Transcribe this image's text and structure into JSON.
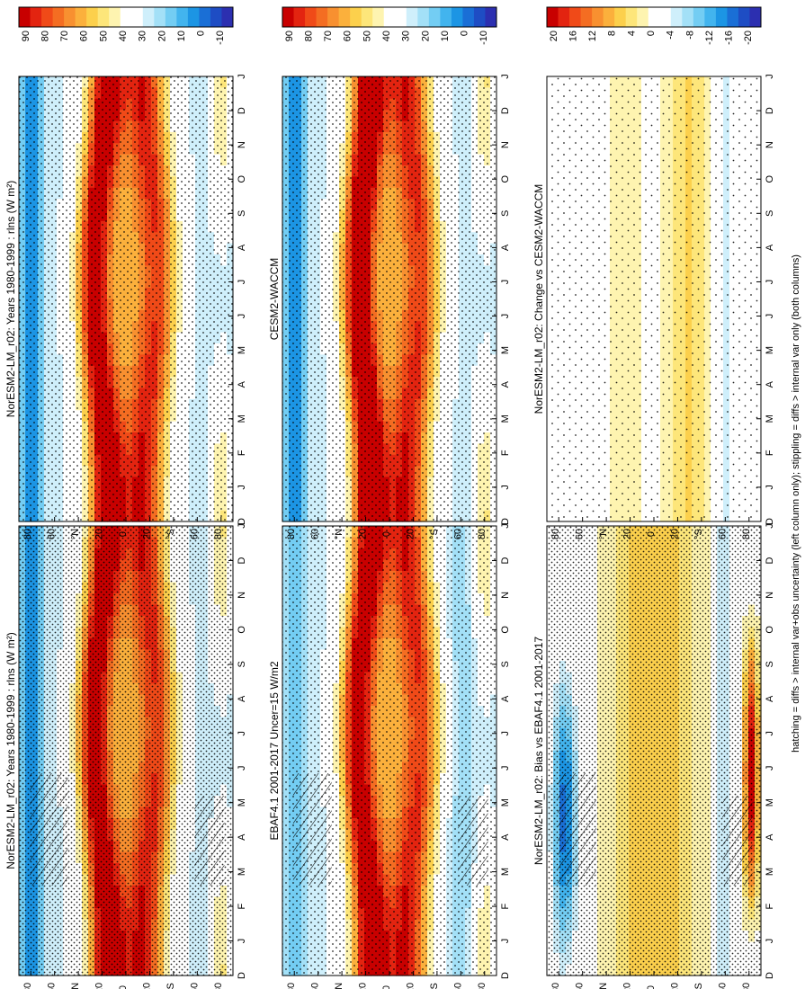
{
  "figure": {
    "footnote": "hatching = diffs > internal var+obs uncertainty (left column only); stippling = diffs > internal var only (both columns)",
    "month_ticks": [
      "D",
      "J",
      "F",
      "M",
      "A",
      "M",
      "J",
      "J",
      "A",
      "S",
      "O",
      "N",
      "D",
      "J"
    ],
    "lat_ticks": [
      "80",
      "60",
      "°N",
      "20",
      "0",
      "20",
      "°S",
      "60",
      "80"
    ]
  },
  "colorbars": {
    "absolute": {
      "labels": [
        "90",
        "80",
        "70",
        "60",
        "50",
        "40",
        "30",
        "20",
        "10",
        "0",
        "-10"
      ],
      "colors": [
        "#c80000",
        "#e32410",
        "#f04a18",
        "#f46d22",
        "#f89030",
        "#fbb03c",
        "#fcd04c",
        "#fde67a",
        "#fef4b0",
        "#ffffff",
        "#ffffff",
        "#cfeffb",
        "#a3e0f7",
        "#73cdf3",
        "#42b4ee",
        "#1c95e4",
        "#1a6fd6",
        "#1e4dc4",
        "#2c2fb0"
      ]
    },
    "difference": {
      "labels": [
        "20",
        "16",
        "12",
        "8",
        "4",
        "0",
        "-4",
        "-8",
        "-12",
        "-16",
        "-20"
      ],
      "colors": [
        "#c80000",
        "#e32410",
        "#f04a18",
        "#f46d22",
        "#f89030",
        "#fbb03c",
        "#fcd04c",
        "#fde67a",
        "#fef4b0",
        "#ffffff",
        "#ffffff",
        "#cfeffb",
        "#a3e0f7",
        "#73cdf3",
        "#42b4ee",
        "#1c95e4",
        "#1a6fd6",
        "#1e4dc4",
        "#2c2fb0"
      ]
    }
  },
  "panels": [
    {
      "id": "p1",
      "title": "NorESM2-LM_r02: Years 1980-1999 : rlns (W m²)",
      "scale": "absolute",
      "pattern": "model",
      "stipple": "heavy",
      "hatch": true
    },
    {
      "id": "p2",
      "title": "NorESM2-LM_r02: Years 1980-1999 : rlns (W m²)",
      "scale": "absolute",
      "pattern": "model",
      "stipple": "medium",
      "hatch": false
    },
    {
      "id": "p3",
      "title": "EBAF4.1 2001-2017 Uncer=15 W/m2",
      "scale": "absolute",
      "pattern": "obs",
      "stipple": "medium",
      "hatch": true
    },
    {
      "id": "p4",
      "title": "CESM2-WACCM",
      "scale": "absolute",
      "pattern": "model2",
      "stipple": "medium",
      "hatch": false
    },
    {
      "id": "p5",
      "title": "NorESM2-LM_r02: Bias vs EBAF4.1 2001-2017",
      "scale": "difference",
      "pattern": "bias",
      "stipple": "heavy",
      "hatch": true
    },
    {
      "id": "p6",
      "title": "NorESM2-LM_r02: Change vs CESM2-WACCM",
      "scale": "difference",
      "pattern": "change",
      "stipple": "light",
      "hatch": false
    }
  ],
  "chart_data": [
    {
      "type": "heatmap",
      "title": "NorESM2-LM_r02: Years 1980-1999 : rlns (W m²)",
      "x": "month (D J F M A M J J A S O N D J)",
      "y": "latitude 90S-90N",
      "colorbar_labels": [
        "90",
        "80",
        "70",
        "60",
        "50",
        "40",
        "30",
        "20",
        "10",
        "0",
        "-10"
      ]
    },
    {
      "type": "heatmap",
      "title": "NorESM2-LM_r02: Years 1980-1999 : rlns (W m²)",
      "x": "month (D J F M A M J J A S O N D J)",
      "y": "latitude 90S-90N",
      "colorbar_labels": [
        "90",
        "80",
        "70",
        "60",
        "50",
        "40",
        "30",
        "20",
        "10",
        "0",
        "-10"
      ]
    },
    {
      "type": "heatmap",
      "title": "EBAF4.1 2001-2017 Uncer=15 W/m2",
      "x": "month (D J F M A M J J A S O N D J)",
      "y": "latitude 90S-90N",
      "colorbar_labels": [
        "90",
        "80",
        "70",
        "60",
        "50",
        "40",
        "30",
        "20",
        "10",
        "0",
        "-10"
      ]
    },
    {
      "type": "heatmap",
      "title": "CESM2-WACCM",
      "x": "month (D J F M A M J J A S O N D J)",
      "y": "latitude 90S-90N",
      "colorbar_labels": [
        "90",
        "80",
        "70",
        "60",
        "50",
        "40",
        "30",
        "20",
        "10",
        "0",
        "-10"
      ]
    },
    {
      "type": "heatmap",
      "title": "NorESM2-LM_r02: Bias vs EBAF4.1 2001-2017",
      "x": "month (D J F M A M J J A S O N D J)",
      "y": "latitude 90S-90N",
      "colorbar_labels": [
        "20",
        "16",
        "12",
        "8",
        "4",
        "0",
        "-4",
        "-8",
        "-12",
        "-16",
        "-20"
      ]
    },
    {
      "type": "heatmap",
      "title": "NorESM2-LM_r02: Change vs CESM2-WACCM",
      "x": "month (D J F M A M J J A S O N D J)",
      "y": "latitude 90S-90N",
      "colorbar_labels": [
        "20",
        "16",
        "12",
        "8",
        "4",
        "0",
        "-4",
        "-8",
        "-12",
        "-16",
        "-20"
      ]
    }
  ]
}
